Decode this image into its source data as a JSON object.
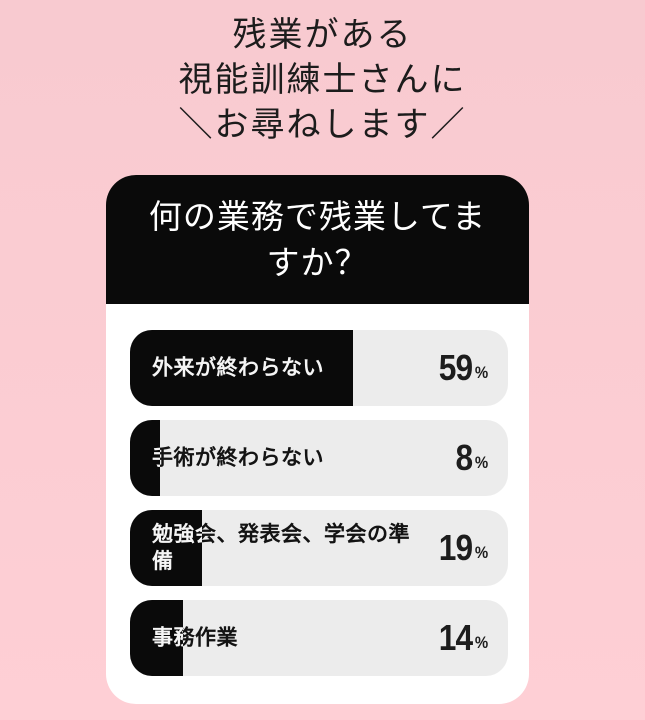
{
  "title": {
    "lines": [
      "残業がある",
      "視能訓練士さんに",
      "＼お尋ねします／"
    ]
  },
  "card": {
    "question": "何の業務で残業してますか？"
  },
  "chart_data": {
    "type": "bar",
    "orientation": "horizontal",
    "title": "何の業務で残業してますか？",
    "categories": [
      "外来が終わらない",
      "手術が終わらない",
      "勉強会、発表会、学会の準備",
      "事務作業"
    ],
    "values": [
      59,
      8,
      19,
      14
    ],
    "unit": "%",
    "value_range": [
      0,
      100
    ],
    "grid": false,
    "legend": false,
    "colors": {
      "background": "#f8cad0",
      "card": "#ffffff",
      "header": "#0a0a0a",
      "bar_fill": "#0a0a0a",
      "bar_track": "#ececec",
      "value_text": "#1d1d1d"
    }
  }
}
